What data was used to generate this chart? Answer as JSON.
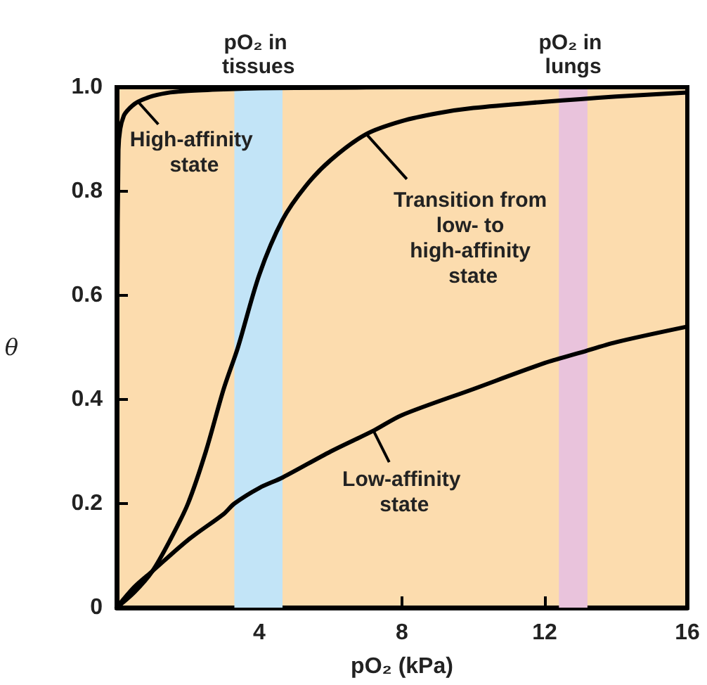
{
  "chart_data": {
    "type": "line",
    "xlabel": "pO₂ (kPa)",
    "ylabel": "θ",
    "xlim": [
      0,
      16
    ],
    "xticks": [
      4,
      8,
      12,
      16
    ],
    "ylim": [
      0,
      1
    ],
    "yticks": [
      0,
      0.2,
      0.4,
      0.6,
      0.8,
      {
        "value": 1,
        "label": "1.0"
      }
    ],
    "grid": false,
    "marker": "none",
    "line_style": "solid",
    "series": [
      {
        "color": "#000000",
        "x": [
          0,
          0.02,
          0.05,
          0.1,
          0.2,
          0.3,
          0.45,
          0.6,
          0.8,
          1.0,
          1.5,
          2,
          3,
          4,
          6,
          8,
          12,
          16
        ],
        "values": [
          0,
          0.6,
          0.88,
          0.92,
          0.945,
          0.955,
          0.965,
          0.972,
          0.978,
          0.983,
          0.99,
          0.993,
          0.996,
          0.998,
          0.999,
          1,
          1,
          1
        ]
      },
      {
        "color": "#000000",
        "x": [
          0,
          0.5,
          1,
          1.5,
          2,
          2.5,
          3,
          3.4,
          4,
          4.65,
          5.3,
          6,
          7,
          8,
          9,
          10,
          12,
          13,
          14,
          16
        ],
        "values": [
          0,
          0.03,
          0.07,
          0.13,
          0.2,
          0.3,
          0.42,
          0.5,
          0.64,
          0.745,
          0.81,
          0.86,
          0.91,
          0.935,
          0.95,
          0.96,
          0.972,
          0.977,
          0.982,
          0.99
        ]
      },
      {
        "color": "#000000",
        "x": [
          0,
          0.5,
          1,
          2,
          3,
          3.3,
          4,
          4.65,
          6,
          7.2,
          8,
          10,
          12,
          13,
          14,
          16
        ],
        "values": [
          0,
          0.04,
          0.07,
          0.13,
          0.18,
          0.2,
          0.23,
          0.25,
          0.3,
          0.34,
          0.37,
          0.42,
          0.47,
          0.49,
          0.51,
          0.54
        ]
      }
    ],
    "bands": [
      {
        "axis": "x",
        "from": 3.3,
        "to": 4.65,
        "label": "pO₂ in tissues",
        "color": "#c2e4f7"
      },
      {
        "axis": "x",
        "from": 12.4,
        "to": 13.2,
        "label": "pO₂ in lungs",
        "color": "#e9c3dc"
      }
    ],
    "annotations": [
      {
        "text": "High-affinity state",
        "x": 0.6,
        "y": 0.972
      },
      {
        "text": "Transition from low- to high-affinity state",
        "x": 7,
        "y": 0.91
      },
      {
        "text": "Low-affinity state",
        "x": 7.2,
        "y": 0.34
      }
    ]
  }
}
